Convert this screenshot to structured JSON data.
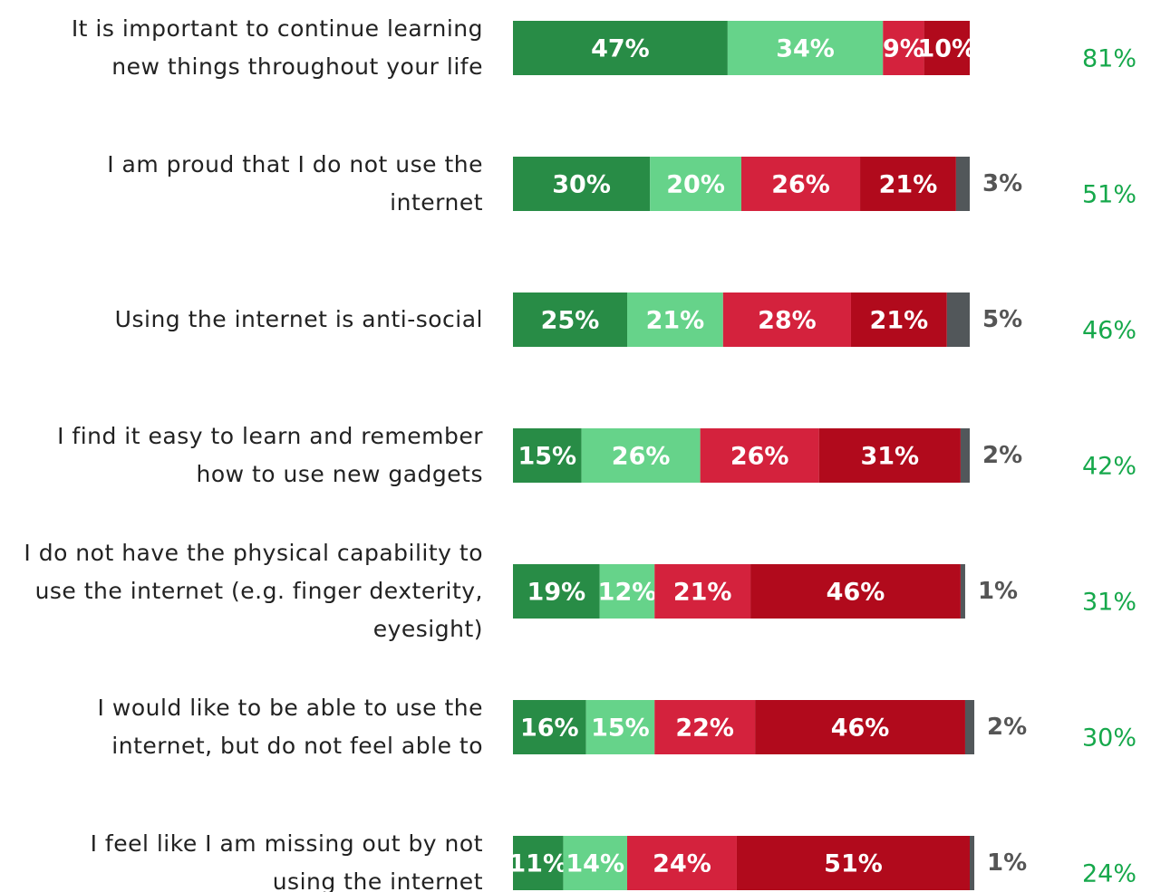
{
  "chart_data": {
    "type": "stacked-bar-horizontal",
    "categories": [
      "It is important to continue learning\nnew things throughout your life",
      "I am proud that I do not use the\ninternet",
      "Using the internet is anti-social",
      "I find it easy to learn and remember\nhow to use new gadgets",
      "I do not have the physical capability to\nuse the internet (e.g. finger dexterity,\neyesight)",
      "I would like to be able to use the\ninternet, but do not feel able to",
      "I feel like I am missing out by not\nusing the internet"
    ],
    "xlim": [
      0,
      100
    ],
    "series": [
      {
        "color": "#288c46",
        "values": [
          47,
          30,
          25,
          15,
          19,
          16,
          11
        ],
        "value_labels": [
          "47%",
          "30%",
          "25%",
          "15%",
          "19%",
          "16%",
          "11%"
        ]
      },
      {
        "color": "#66d38a",
        "values": [
          34,
          20,
          21,
          26,
          12,
          15,
          14
        ],
        "value_labels": [
          "34%",
          "20%",
          "21%",
          "26%",
          "12%",
          "15%",
          "14%"
        ]
      },
      {
        "color": "#d4223d",
        "values": [
          9,
          26,
          28,
          26,
          21,
          22,
          24
        ],
        "value_labels": [
          "9%",
          "26%",
          "28%",
          "26%",
          "21%",
          "22%",
          "24%"
        ]
      },
      {
        "color": "#b10a1c",
        "values": [
          10,
          21,
          21,
          31,
          46,
          46,
          51
        ],
        "value_labels": [
          "10%",
          "21%",
          "21%",
          "31%",
          "46%",
          "46%",
          "51%"
        ]
      },
      {
        "color": "#52575a",
        "values": [
          null,
          3,
          5,
          2,
          1,
          2,
          1
        ],
        "value_labels": [
          null,
          "3%",
          "5%",
          "2%",
          "1%",
          "2%",
          "1%"
        ]
      }
    ],
    "totals": {
      "color": "#16a84b",
      "values": [
        81,
        51,
        46,
        42,
        31,
        30,
        24
      ],
      "value_labels": [
        "81%",
        "51%",
        "46%",
        "42%",
        "31%",
        "30%",
        "24%"
      ]
    }
  }
}
